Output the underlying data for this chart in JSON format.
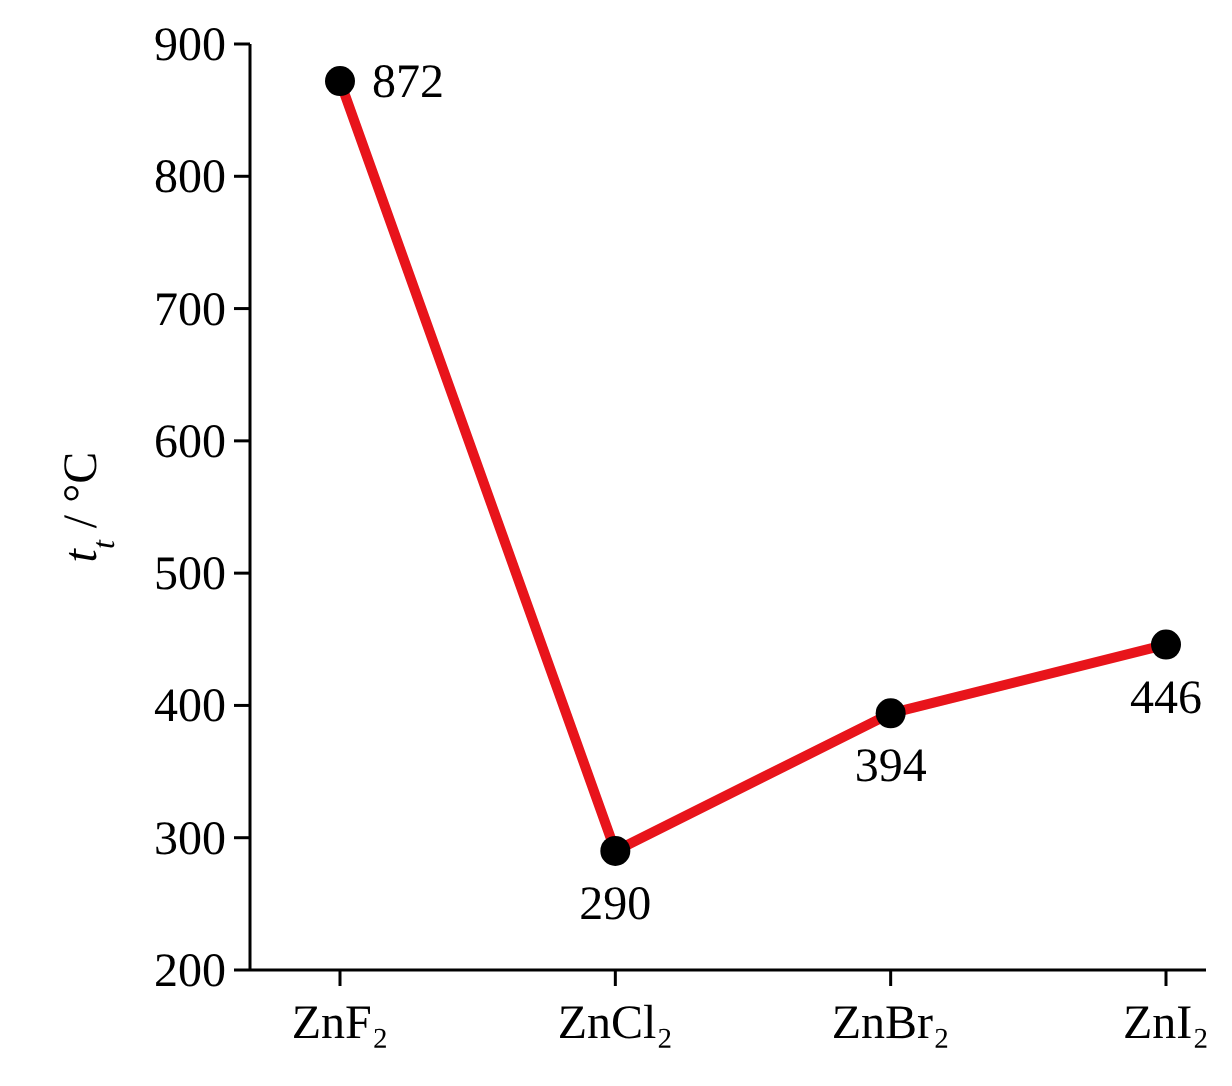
{
  "chart_data": {
    "type": "line",
    "ylabel": "t$_{t}$ / °C",
    "categories": [
      "ZnF₂",
      "ZnCl₂",
      "ZnBr₂",
      "ZnI₂"
    ],
    "series": [
      {
        "color": "#e8141b",
        "values": [
          872,
          290,
          394,
          446
        ]
      }
    ],
    "ylim": [
      200,
      900
    ],
    "yticks": [
      200,
      300,
      400,
      500,
      600,
      700,
      800,
      900
    ],
    "marker": "circle",
    "data_labels": true,
    "grid": false
  }
}
